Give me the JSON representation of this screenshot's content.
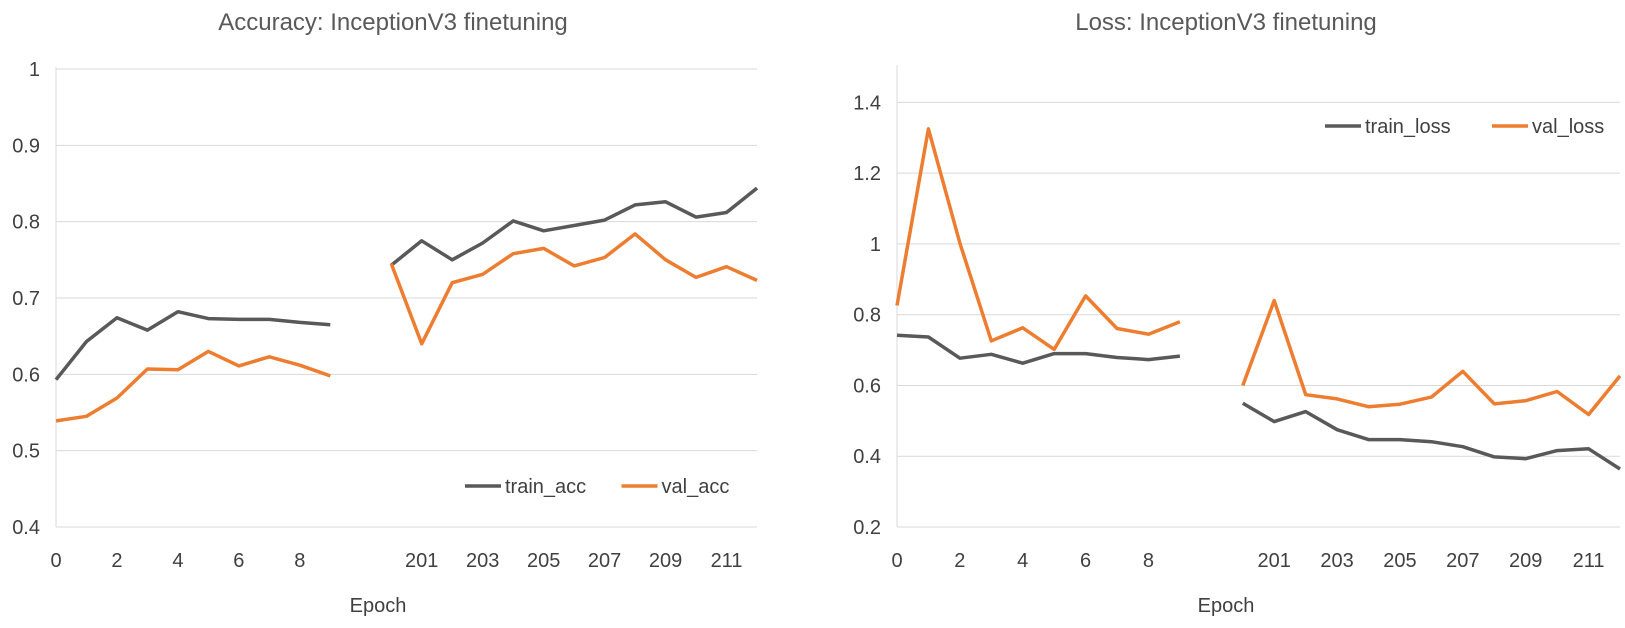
{
  "chart_data": [
    {
      "type": "line",
      "title": "Accuracy:  InceptionV3 finetuning",
      "xlabel": "Epoch",
      "ylabel": "",
      "ylim": [
        0.4,
        1
      ],
      "yticks": [
        "0.4",
        "0.5",
        "0.6",
        "0.7",
        "0.8",
        "0.9",
        "1"
      ],
      "categories": [
        "0",
        "1",
        "2",
        "3",
        "4",
        "5",
        "6",
        "7",
        "8",
        "9",
        "",
        "200",
        "201",
        "202",
        "203",
        "204",
        "205",
        "206",
        "207",
        "208",
        "209",
        "210",
        "211",
        "212"
      ],
      "x_tick_labels": [
        "0",
        "2",
        "4",
        "6",
        "8",
        "201",
        "203",
        "205",
        "207",
        "209",
        "211"
      ],
      "grid": "horizontal",
      "legend": "bottom-right",
      "series": [
        {
          "name": "train_acc",
          "color": "#595959",
          "values": [
            0.593,
            0.643,
            0.674,
            0.658,
            0.682,
            0.673,
            0.672,
            0.672,
            0.668,
            0.665,
            null,
            0.743,
            0.775,
            0.75,
            0.772,
            0.801,
            0.788,
            0.795,
            0.802,
            0.822,
            0.826,
            0.806,
            0.812,
            0.844
          ]
        },
        {
          "name": "val_acc",
          "color": "#ED7D31",
          "values": [
            0.539,
            0.545,
            0.569,
            0.607,
            0.606,
            0.63,
            0.611,
            0.623,
            0.612,
            0.598,
            null,
            0.745,
            0.64,
            0.72,
            0.731,
            0.758,
            0.765,
            0.742,
            0.753,
            0.784,
            0.75,
            0.727,
            0.741,
            0.723
          ]
        }
      ]
    },
    {
      "type": "line",
      "title": "Loss:  InceptionV3 finetuning",
      "xlabel": "Epoch",
      "ylabel": "",
      "ylim": [
        0.2,
        1.5
      ],
      "yticks": [
        "0.2",
        "0.4",
        "0.6",
        "0.8",
        "1",
        "1.2",
        "1.4"
      ],
      "categories": [
        "0",
        "1",
        "2",
        "3",
        "4",
        "5",
        "6",
        "7",
        "8",
        "9",
        "",
        "200",
        "201",
        "202",
        "203",
        "204",
        "205",
        "206",
        "207",
        "208",
        "209",
        "210",
        "211",
        "212"
      ],
      "x_tick_labels": [
        "0",
        "2",
        "4",
        "6",
        "8",
        "201",
        "203",
        "205",
        "207",
        "209",
        "211"
      ],
      "grid": "horizontal",
      "legend": "top-right",
      "series": [
        {
          "name": "train_loss",
          "color": "#595959",
          "values": [
            0.742,
            0.737,
            0.677,
            0.688,
            0.663,
            0.69,
            0.69,
            0.679,
            0.673,
            0.683,
            null,
            0.55,
            0.498,
            0.526,
            0.475,
            0.447,
            0.447,
            0.441,
            0.427,
            0.398,
            0.393,
            0.416,
            0.421,
            0.364
          ]
        },
        {
          "name": "val_loss",
          "color": "#ED7D31",
          "values": [
            0.826,
            1.325,
            1.002,
            0.726,
            0.763,
            0.702,
            0.853,
            0.761,
            0.745,
            0.78,
            null,
            0.6,
            0.84,
            0.574,
            0.562,
            0.54,
            0.547,
            0.567,
            0.64,
            0.548,
            0.557,
            0.583,
            0.518,
            0.627
          ]
        }
      ]
    }
  ]
}
